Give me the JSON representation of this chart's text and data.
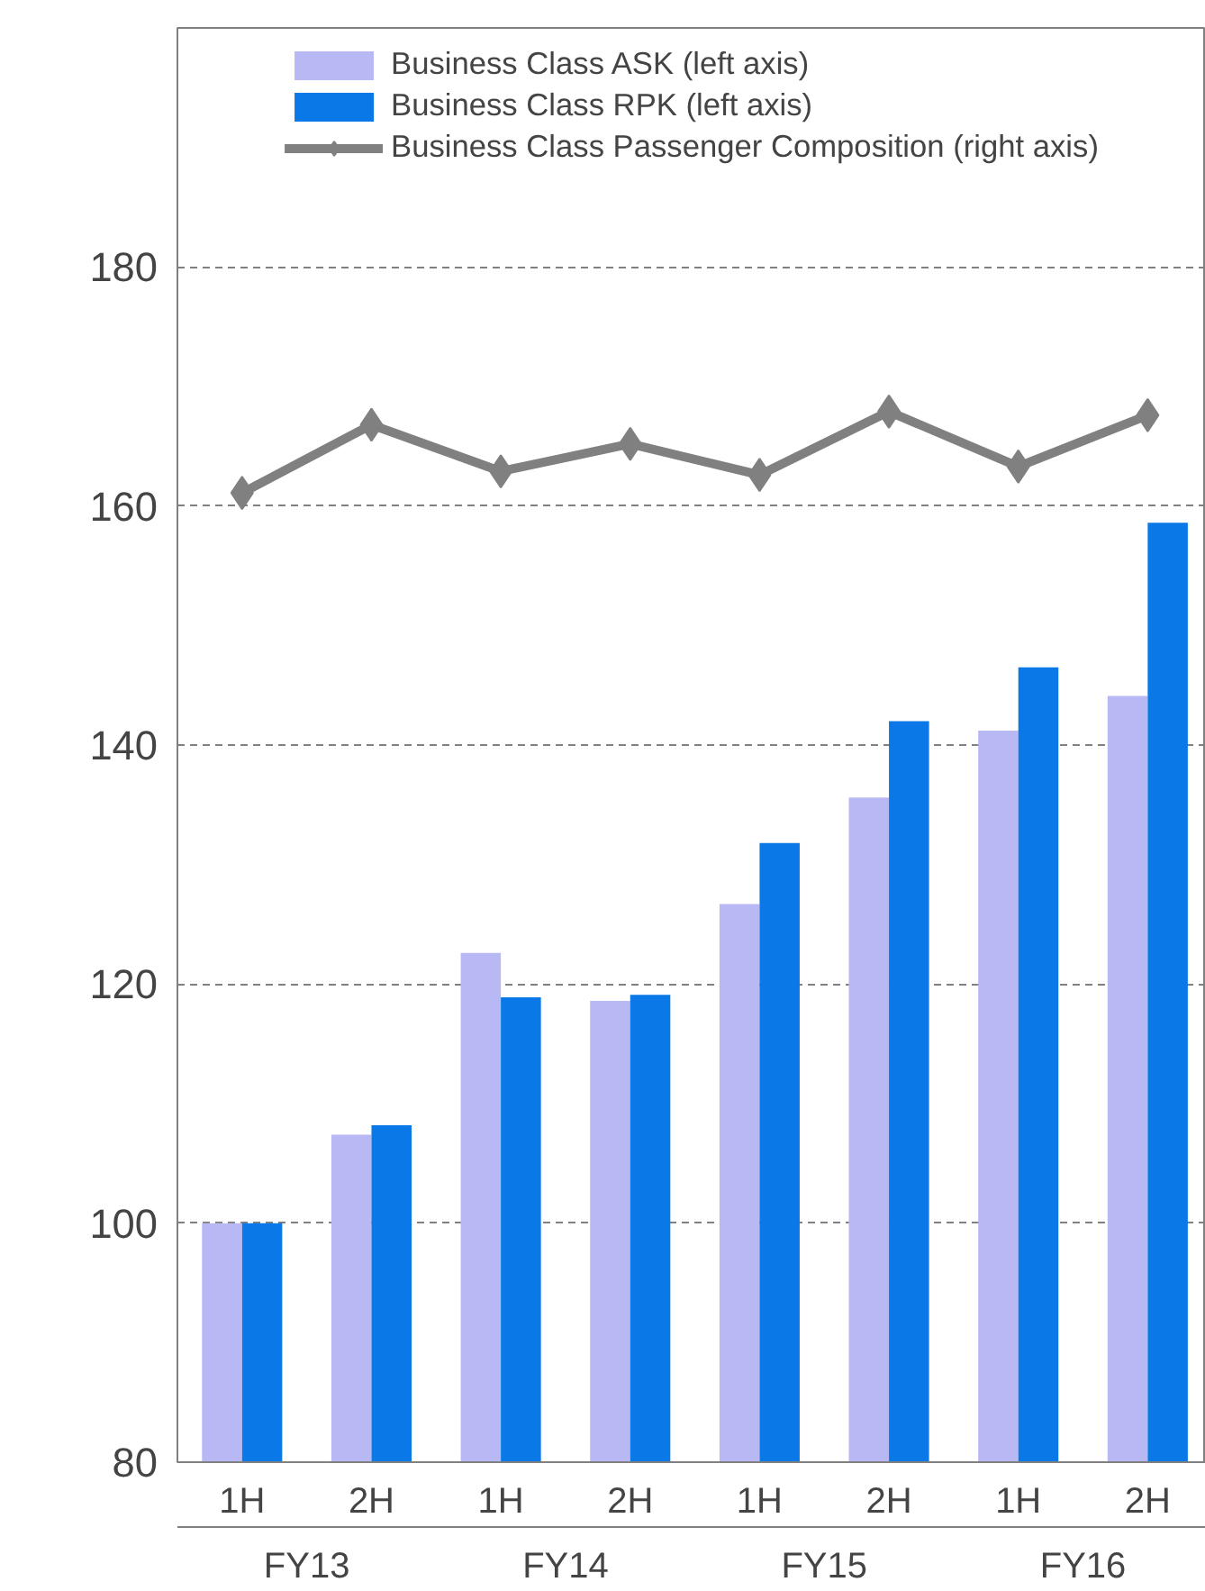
{
  "chart_data": {
    "type": "bar",
    "categories": [
      "1H",
      "2H",
      "1H",
      "2H",
      "1H",
      "2H",
      "1H",
      "2H"
    ],
    "series": [
      {
        "name": "Business Class ASK (left axis)",
        "color": "#b8b8f4",
        "values": [
          100,
          107.4,
          122.6,
          118.6,
          126.7,
          135.6,
          141.2,
          144.1
        ]
      },
      {
        "name": "Business Class RPK (left axis)",
        "color": "#0a78e6",
        "values": [
          100,
          108.2,
          118.9,
          119.1,
          131.8,
          142,
          146.5,
          158.6
        ]
      },
      {
        "name": "Business Class Passenger Composition (right axis)",
        "type": "line",
        "color": "#808080",
        "marker": "diamond",
        "values": [
          161.1,
          166.8,
          162.9,
          165.2,
          162.6,
          167.9,
          163.3,
          167.6
        ]
      }
    ],
    "annotations": [
      "FY13",
      "FY14",
      "FY15",
      "FY16"
    ],
    "ylim": [
      80,
      200
    ],
    "yticks": [
      80,
      100,
      120,
      140,
      160,
      180
    ],
    "grid": "y",
    "legend": "top"
  }
}
